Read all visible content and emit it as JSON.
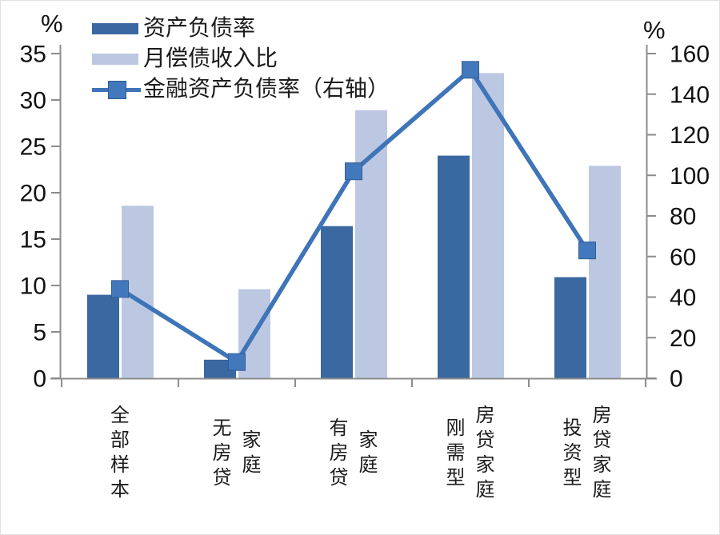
{
  "chart_data": {
    "type": "bar+line-combo",
    "title": "",
    "grid": false,
    "legend_position": "top-left",
    "categories": [
      "全部样本",
      "无房贷家庭",
      "有房贷家庭",
      "刚需型房贷家庭",
      "投资型房贷家庭"
    ],
    "category_label_columns": [
      [
        "全部样本"
      ],
      [
        "无房贷",
        "家庭"
      ],
      [
        "有房贷",
        "家庭"
      ],
      [
        "刚需型",
        "房贷家庭"
      ],
      [
        "投资型",
        "房贷家庭"
      ]
    ],
    "series": [
      {
        "name": "资产负债率",
        "type": "bar",
        "axis": "left",
        "color": "#3A68A0",
        "values": [
          9.0,
          2.0,
          16.4,
          24.0,
          10.9
        ]
      },
      {
        "name": "月偿债收入比",
        "type": "bar",
        "axis": "left",
        "color": "#BCC8E2",
        "values": [
          18.6,
          9.6,
          28.9,
          32.9,
          22.9
        ]
      },
      {
        "name": "金融资产负债率（右轴）",
        "type": "line",
        "axis": "right",
        "color": "#3E74B8",
        "marker": "square",
        "marker_color": "#4379BC",
        "values": [
          44,
          8,
          102,
          152,
          63
        ]
      }
    ],
    "left_axis": {
      "unit": "%",
      "min": 0,
      "max": 35,
      "step": 5,
      "ticks": [
        0,
        5,
        10,
        15,
        20,
        25,
        30,
        35
      ]
    },
    "right_axis": {
      "unit": "%",
      "min": 0,
      "max": 160,
      "step": 20,
      "ticks": [
        0,
        20,
        40,
        60,
        80,
        100,
        120,
        140,
        160
      ]
    },
    "colors": {
      "axis_line": "#8C8C8C",
      "text": "#1c1c1c",
      "marker_border": "#2E5D95",
      "background": "#ffffff"
    }
  }
}
